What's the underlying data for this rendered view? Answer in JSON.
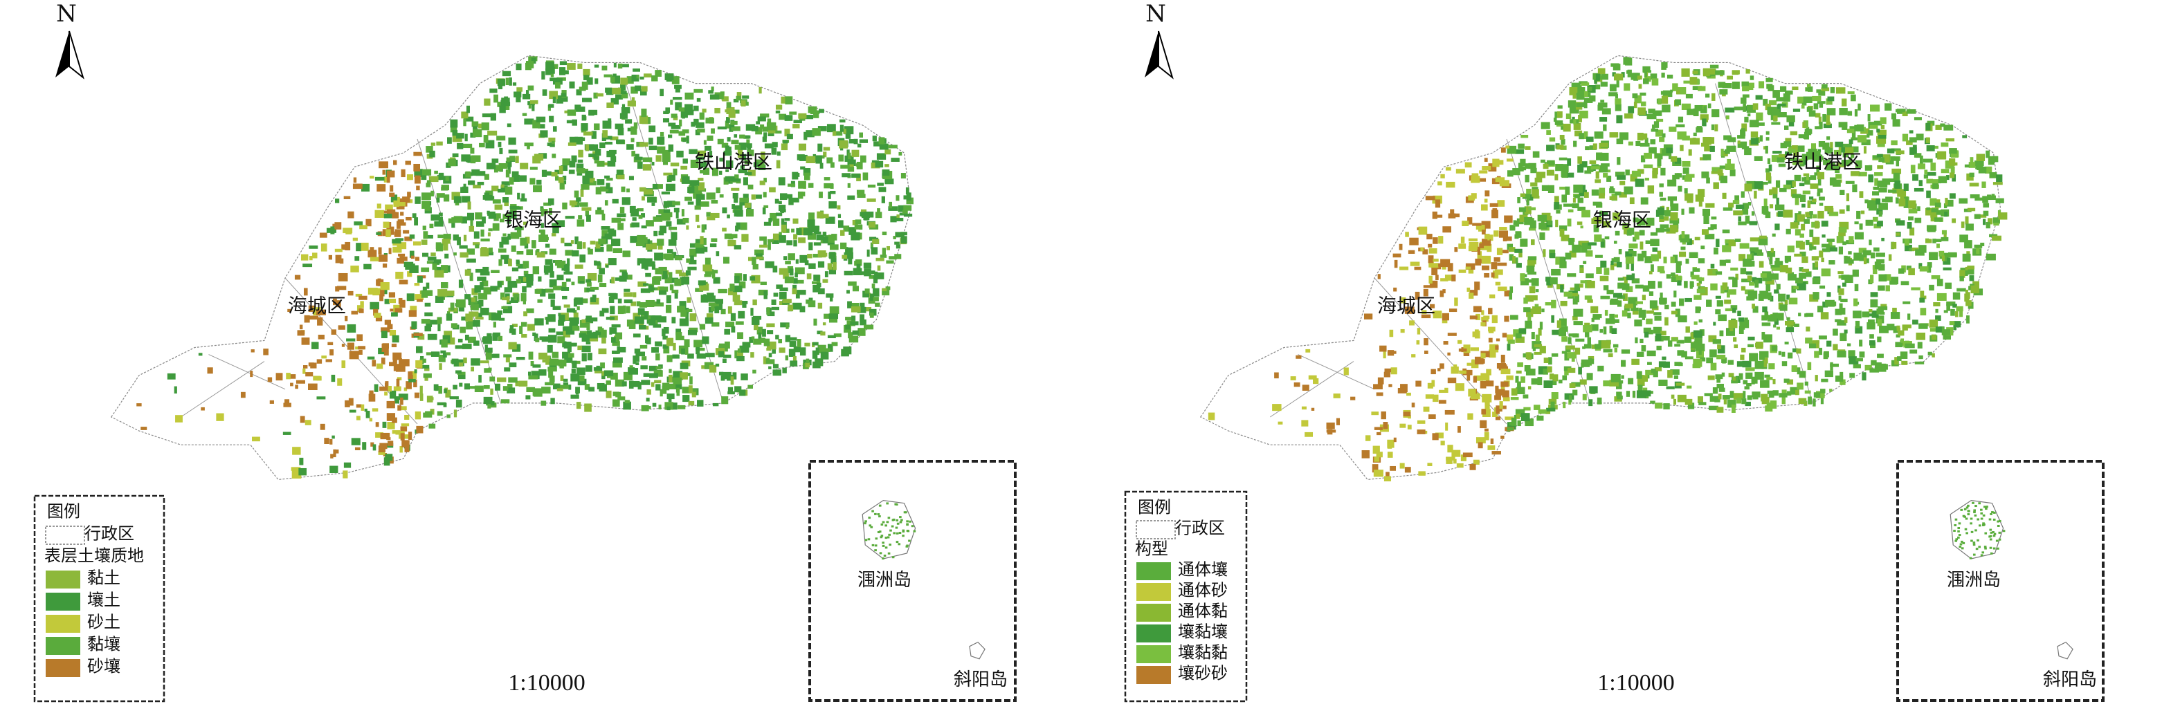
{
  "maps": [
    {
      "north": "N",
      "districts": [
        "银海区",
        "铁山港区",
        "海城区"
      ],
      "legend": {
        "title": "图例",
        "boundary": "行政区",
        "subtitle": "表层土壤质地",
        "items": [
          {
            "label": "黏土",
            "color": "#8db83a"
          },
          {
            "label": "壤土",
            "color": "#3f9a3c"
          },
          {
            "label": "砂土",
            "color": "#c2c93a"
          },
          {
            "label": "黏壤",
            "color": "#5aab3c"
          },
          {
            "label": "砂壤",
            "color": "#b87a2a"
          }
        ]
      },
      "scale": "1:10000",
      "islands": [
        "涠洲岛",
        "斜阳岛"
      ]
    },
    {
      "north": "N",
      "districts": [
        "银海区",
        "铁山港区",
        "海城区"
      ],
      "legend": {
        "title": "图例",
        "boundary": "行政区",
        "subtitle": "构型",
        "items": [
          {
            "label": "通体壤",
            "color": "#5aad3c"
          },
          {
            "label": "通体砂",
            "color": "#c2c93a"
          },
          {
            "label": "通体黏",
            "color": "#8ab832"
          },
          {
            "label": "壤黏壤",
            "color": "#3f9a3c"
          },
          {
            "label": "壤黏黏",
            "color": "#7abf3f"
          },
          {
            "label": "壤砂砂",
            "color": "#b87a2a"
          }
        ]
      },
      "scale": "1:10000",
      "islands": [
        "涠洲岛",
        "斜阳岛"
      ]
    }
  ]
}
